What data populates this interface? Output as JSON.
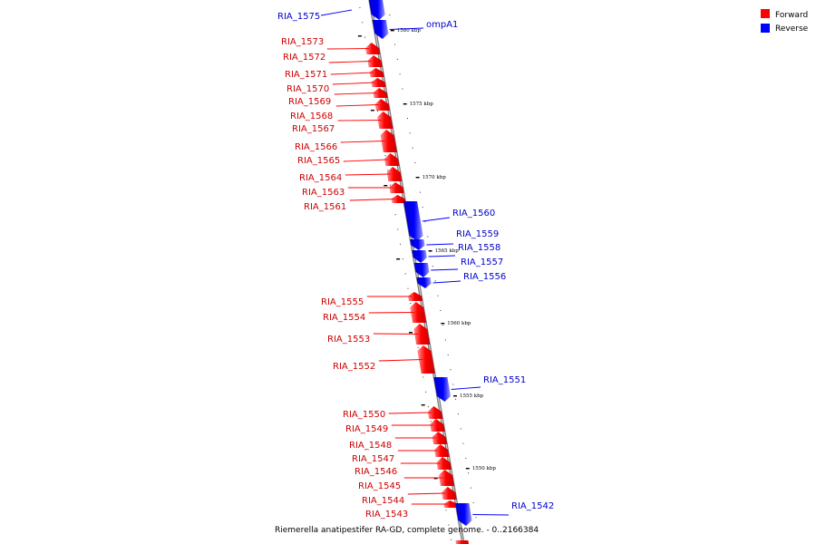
{
  "caption": "Riemerella anatipestifer RA-GD, complete genome. - 0..2166384",
  "legend": [
    {
      "label": "Forward",
      "color": "#ff0000"
    },
    {
      "label": "Reverse",
      "color": "#0000ff"
    }
  ],
  "colors": {
    "forward": "#ff0000",
    "forward_label": "#cc0000",
    "reverse": "#0000ff",
    "reverse_label": "#0000cc",
    "backbone": "#808080"
  },
  "ticks": [
    {
      "label": "1580 kbp"
    },
    {
      "label": "1575 kbp"
    },
    {
      "label": "1570 kbp"
    },
    {
      "label": "1565 kbp"
    },
    {
      "label": "1560 kbp"
    },
    {
      "label": "1555 kbp"
    },
    {
      "label": "1550 kbp"
    }
  ],
  "genes": [
    {
      "name": "RIA_1575",
      "strand": "reverse"
    },
    {
      "name": "ompA1",
      "strand": "reverse"
    },
    {
      "name": "RIA_1573",
      "strand": "forward"
    },
    {
      "name": "RIA_1572",
      "strand": "forward"
    },
    {
      "name": "RIA_1571",
      "strand": "forward"
    },
    {
      "name": "RIA_1570",
      "strand": "forward"
    },
    {
      "name": "RIA_1569",
      "strand": "forward"
    },
    {
      "name": "RIA_1568",
      "strand": "forward"
    },
    {
      "name": "RIA_1567",
      "strand": "forward"
    },
    {
      "name": "RIA_1566",
      "strand": "forward"
    },
    {
      "name": "RIA_1565",
      "strand": "forward"
    },
    {
      "name": "RIA_1564",
      "strand": "forward"
    },
    {
      "name": "RIA_1563",
      "strand": "forward"
    },
    {
      "name": "RIA_1561",
      "strand": "forward"
    },
    {
      "name": "RIA_1560",
      "strand": "reverse"
    },
    {
      "name": "RIA_1559",
      "strand": "reverse"
    },
    {
      "name": "RIA_1558",
      "strand": "reverse"
    },
    {
      "name": "RIA_1557",
      "strand": "reverse"
    },
    {
      "name": "RIA_1556",
      "strand": "reverse"
    },
    {
      "name": "RIA_1555",
      "strand": "forward"
    },
    {
      "name": "RIA_1554",
      "strand": "forward"
    },
    {
      "name": "RIA_1553",
      "strand": "forward"
    },
    {
      "name": "RIA_1552",
      "strand": "forward"
    },
    {
      "name": "RIA_1551",
      "strand": "reverse"
    },
    {
      "name": "RIA_1550",
      "strand": "forward"
    },
    {
      "name": "RIA_1549",
      "strand": "forward"
    },
    {
      "name": "RIA_1548",
      "strand": "forward"
    },
    {
      "name": "RIA_1547",
      "strand": "forward"
    },
    {
      "name": "RIA_1546",
      "strand": "forward"
    },
    {
      "name": "RIA_1545",
      "strand": "forward"
    },
    {
      "name": "RIA_1544",
      "strand": "forward"
    },
    {
      "name": "RIA_1543",
      "strand": "forward"
    },
    {
      "name": "RIA_1542",
      "strand": "reverse"
    }
  ]
}
